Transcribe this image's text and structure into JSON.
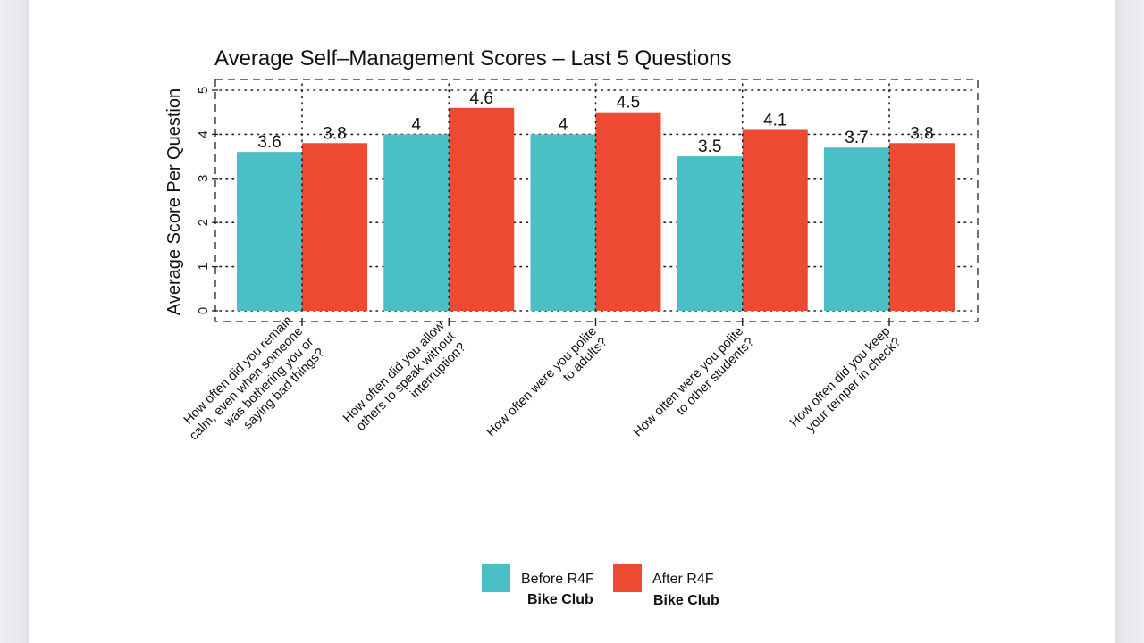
{
  "chart_data": {
    "type": "bar",
    "title": "Average Self–Management Scores – Last 5 Questions",
    "xlabel": "",
    "ylabel": "Average Score Per Question",
    "ylim": [
      0,
      5
    ],
    "yticks": [
      0,
      1,
      2,
      3,
      4,
      5
    ],
    "grid": true,
    "categories": [
      [
        "How often did you remain",
        "calm, even when someone",
        "was bothering you or",
        "saying bad things?"
      ],
      [
        "How often did you allow",
        "others to speak without",
        "interruption?"
      ],
      [
        "How often were you polite",
        "to adults?"
      ],
      [
        "How often were you polite",
        "to other students?"
      ],
      [
        "How often did you keep",
        "your temper in check?"
      ]
    ],
    "series": [
      {
        "name": "Before R4F Bike Club",
        "label_lines": [
          "Before R4F",
          "Bike Club"
        ],
        "color": "#4bbfc6",
        "values": [
          3.6,
          4.0,
          4.0,
          3.5,
          3.7
        ],
        "value_labels": [
          "3.6",
          "4",
          "4",
          "3.5",
          "3.7"
        ]
      },
      {
        "name": "After R4F Bike Club",
        "label_lines": [
          "After R4F",
          "Bike Club"
        ],
        "color": "#ec4a32",
        "values": [
          3.8,
          4.6,
          4.5,
          4.1,
          3.8
        ],
        "value_labels": [
          "3.8",
          "4.6",
          "4.5",
          "4.1",
          "3.8"
        ]
      }
    ],
    "legend_position": "bottom"
  }
}
